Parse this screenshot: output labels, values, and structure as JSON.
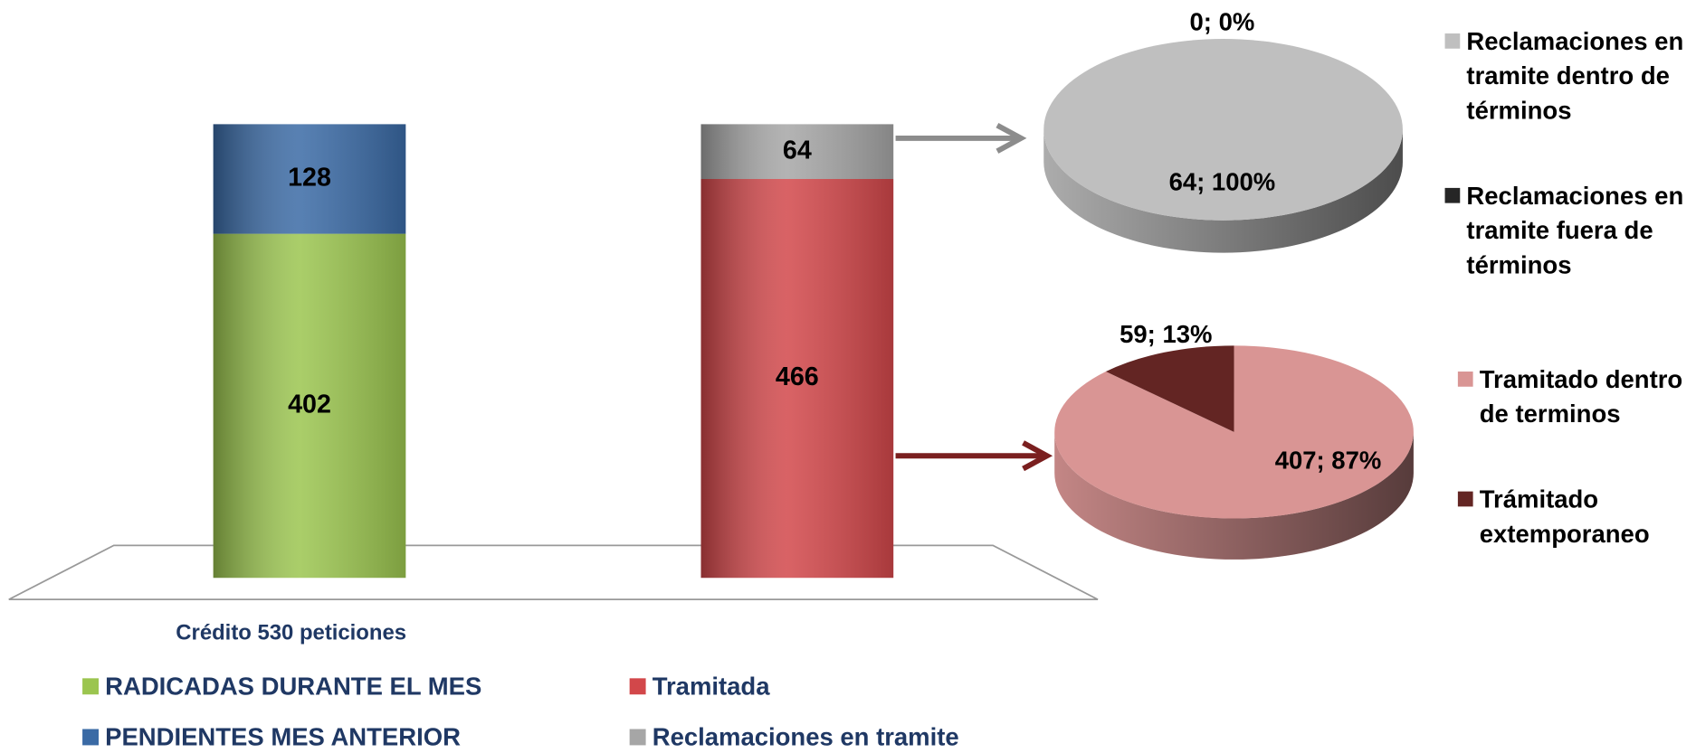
{
  "chart_data": [
    {
      "type": "bar",
      "stacked": true,
      "categories": [
        "Crédito 530 peticiones",
        null
      ],
      "series": [
        {
          "name": "RADICADAS DURANTE EL MES",
          "color": "#9bc54f",
          "values": [
            402,
            null
          ]
        },
        {
          "name": "PENDIENTES MES ANTERIOR",
          "color": "#3a6aa5",
          "values": [
            128,
            null
          ]
        },
        {
          "name": "Tramitada",
          "color": "#d2474a",
          "values": [
            null,
            466
          ]
        },
        {
          "name": "Reclamaciones en tramite",
          "color": "#a6a6a6",
          "values": [
            null,
            64
          ]
        }
      ],
      "ylim": [
        0,
        530
      ]
    },
    {
      "type": "pie",
      "categories": [
        "Reclamaciones en tramite dentro de términos",
        "Reclamaciones en tramite fuera de términos"
      ],
      "values": [
        64,
        0
      ],
      "value_labels": [
        "64; 100%",
        "0; 0%"
      ],
      "colors": [
        "#bfbfbf",
        "#262626"
      ]
    },
    {
      "type": "pie",
      "categories": [
        "Tramitado dentro de terminos",
        "Trámitado extemporaneo"
      ],
      "values": [
        407,
        59
      ],
      "value_labels": [
        "407; 87%",
        "59; 13%"
      ],
      "colors": [
        "#d99594",
        "#632523"
      ]
    }
  ]
}
